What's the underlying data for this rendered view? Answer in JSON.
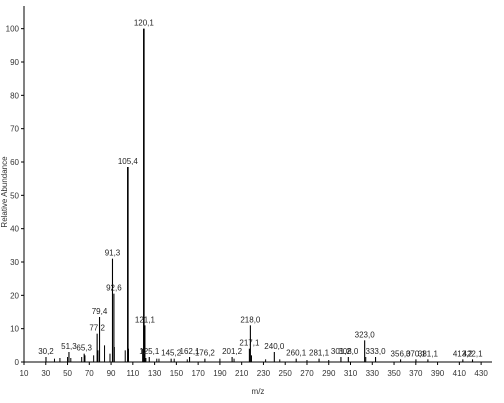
{
  "chart_data": {
    "type": "bar",
    "title": "",
    "xlabel": "m/z",
    "ylabel": "Relative Abundance",
    "xlim": [
      10,
      440
    ],
    "ylim": [
      0,
      105
    ],
    "x_ticks": [
      10,
      30,
      50,
      70,
      90,
      110,
      130,
      150,
      170,
      190,
      210,
      230,
      250,
      270,
      290,
      310,
      330,
      350,
      370,
      390,
      410,
      430
    ],
    "y_ticks": [
      0,
      10,
      20,
      30,
      40,
      50,
      60,
      70,
      80,
      90,
      100
    ],
    "grid": false,
    "colors": {
      "line": "#000000",
      "text": "#333333",
      "annotation": "#2e8b2e"
    },
    "peaks": [
      {
        "mz": 30.2,
        "label": "30,2",
        "y": 1.5
      },
      {
        "mz": 51.3,
        "label": "51,3",
        "y": 3.0
      },
      {
        "mz": 65.3,
        "label": "65,3",
        "y": 2.5
      },
      {
        "mz": 77.2,
        "label": "77,2",
        "y": 8.5
      },
      {
        "mz": 79.4,
        "label": "79,4",
        "y": 13.5
      },
      {
        "mz": 91.3,
        "label": "91,3",
        "y": 31.0
      },
      {
        "mz": 92.6,
        "label": "92,6",
        "y": 20.5
      },
      {
        "mz": 105.4,
        "label": "105,4",
        "y": 58.5
      },
      {
        "mz": 120.1,
        "label": "120,1",
        "y": 100.0
      },
      {
        "mz": 121.1,
        "label": "121,1",
        "y": 11.0
      },
      {
        "mz": 125.1,
        "label": "125,1",
        "y": 1.5
      },
      {
        "mz": 145.2,
        "label": "145,2",
        "y": 1.0
      },
      {
        "mz": 162.1,
        "label": "162,1",
        "y": 1.5
      },
      {
        "mz": 176.2,
        "label": "176,2",
        "y": 1.0
      },
      {
        "mz": 201.2,
        "label": "201,2",
        "y": 1.5
      },
      {
        "mz": 217.1,
        "label": "217,1",
        "y": 4.0
      },
      {
        "mz": 218.0,
        "label": "218,0",
        "y": 11.0
      },
      {
        "mz": 240.0,
        "label": "240,0",
        "y": 3.0
      },
      {
        "mz": 260.1,
        "label": "260,1",
        "y": 1.0
      },
      {
        "mz": 281.1,
        "label": "281,1",
        "y": 1.0
      },
      {
        "mz": 301.2,
        "label": "301,2",
        "y": 1.5
      },
      {
        "mz": 308.0,
        "label": "308,0",
        "y": 1.5
      },
      {
        "mz": 323.0,
        "label": "323,0",
        "y": 6.5
      },
      {
        "mz": 333.0,
        "label": "333,0",
        "y": 1.5
      },
      {
        "mz": 356.0,
        "label": "356,0",
        "y": 0.8
      },
      {
        "mz": 370.1,
        "label": "370,1",
        "y": 0.8
      },
      {
        "mz": 381.1,
        "label": "381,1",
        "y": 0.8
      },
      {
        "mz": 413.2,
        "label": "413,2",
        "y": 0.8
      },
      {
        "mz": 422.1,
        "label": "422,1",
        "y": 0.8
      }
    ],
    "minor_peaks": [
      {
        "mz": 38,
        "y": 1.0
      },
      {
        "mz": 43,
        "y": 1.2
      },
      {
        "mz": 50,
        "y": 1.5
      },
      {
        "mz": 53,
        "y": 1.2
      },
      {
        "mz": 63,
        "y": 1.5
      },
      {
        "mz": 66,
        "y": 2.0
      },
      {
        "mz": 74,
        "y": 2.0
      },
      {
        "mz": 78,
        "y": 3.5
      },
      {
        "mz": 84,
        "y": 5.0
      },
      {
        "mz": 89,
        "y": 2.5
      },
      {
        "mz": 93,
        "y": 4.5
      },
      {
        "mz": 103,
        "y": 3.5
      },
      {
        "mz": 106,
        "y": 4.0
      },
      {
        "mz": 119,
        "y": 4.0
      },
      {
        "mz": 122,
        "y": 1.2
      },
      {
        "mz": 132,
        "y": 1.0
      },
      {
        "mz": 134,
        "y": 1.0
      },
      {
        "mz": 148,
        "y": 1.0
      },
      {
        "mz": 160,
        "y": 0.8
      },
      {
        "mz": 190,
        "y": 1.0
      },
      {
        "mz": 203,
        "y": 1.0
      },
      {
        "mz": 219,
        "y": 2.0
      },
      {
        "mz": 232,
        "y": 0.8
      },
      {
        "mz": 245,
        "y": 0.8
      },
      {
        "mz": 270,
        "y": 0.6
      },
      {
        "mz": 290,
        "y": 0.6
      },
      {
        "mz": 324,
        "y": 1.5
      }
    ]
  }
}
